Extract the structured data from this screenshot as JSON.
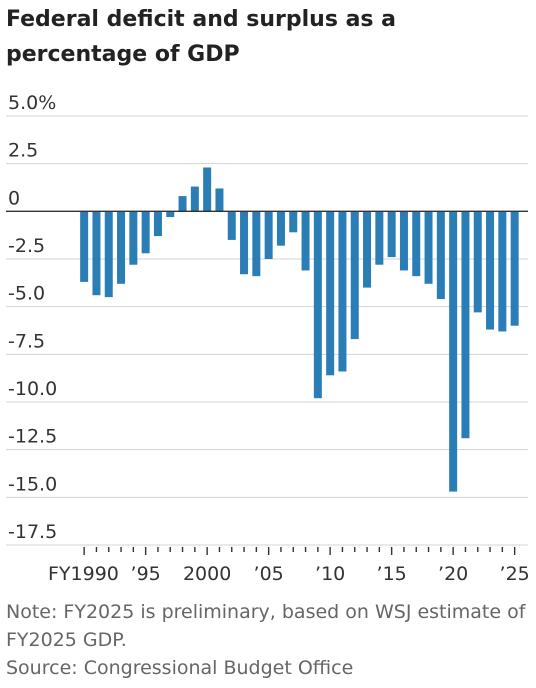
{
  "colors": {
    "bar": "#2a7db5",
    "grid": "#d3d3d3",
    "axis": "#333333"
  },
  "note": "Note: FY2025 is preliminary, based on WSJ estimate of FY2025 GDP.",
  "source": "Source: Congressional Budget Office",
  "chart_data": {
    "type": "bar",
    "title": "Federal deficit and surplus as a percentage of GDP",
    "xlabel": "",
    "ylabel": "",
    "categories": [
      1990,
      1991,
      1992,
      1993,
      1994,
      1995,
      1996,
      1997,
      1998,
      1999,
      2000,
      2001,
      2002,
      2003,
      2004,
      2005,
      2006,
      2007,
      2008,
      2009,
      2010,
      2011,
      2012,
      2013,
      2014,
      2015,
      2016,
      2017,
      2018,
      2019,
      2020,
      2021,
      2022,
      2023,
      2024,
      2025
    ],
    "values": [
      -3.7,
      -4.4,
      -4.5,
      -3.8,
      -2.8,
      -2.2,
      -1.3,
      -0.3,
      0.8,
      1.3,
      2.3,
      1.2,
      -1.5,
      -3.3,
      -3.4,
      -2.5,
      -1.8,
      -1.1,
      -3.1,
      -9.8,
      -8.6,
      -8.4,
      -6.7,
      -4.0,
      -2.8,
      -2.4,
      -3.1,
      -3.4,
      -3.8,
      -4.6,
      -14.7,
      -11.9,
      -5.3,
      -6.2,
      -6.3,
      -6.0
    ],
    "ylim": [
      -17.5,
      5.0
    ],
    "yticks": [
      5.0,
      2.5,
      0,
      -2.5,
      -5.0,
      -7.5,
      -10.0,
      -12.5,
      -15.0,
      -17.5
    ],
    "ytick_labels": [
      "5.0%",
      "2.5",
      "0",
      "-2.5",
      "-5.0",
      "-7.5",
      "-10.0",
      "-12.5",
      "-15.0",
      "-17.5"
    ],
    "xtick_positions": [
      1990,
      1995,
      2000,
      2005,
      2010,
      2015,
      2020,
      2025
    ],
    "xtick_labels": [
      "FY1990",
      "’95",
      "2000",
      "’05",
      "’10",
      "’15",
      "’20",
      "’25"
    ],
    "grid": true
  }
}
